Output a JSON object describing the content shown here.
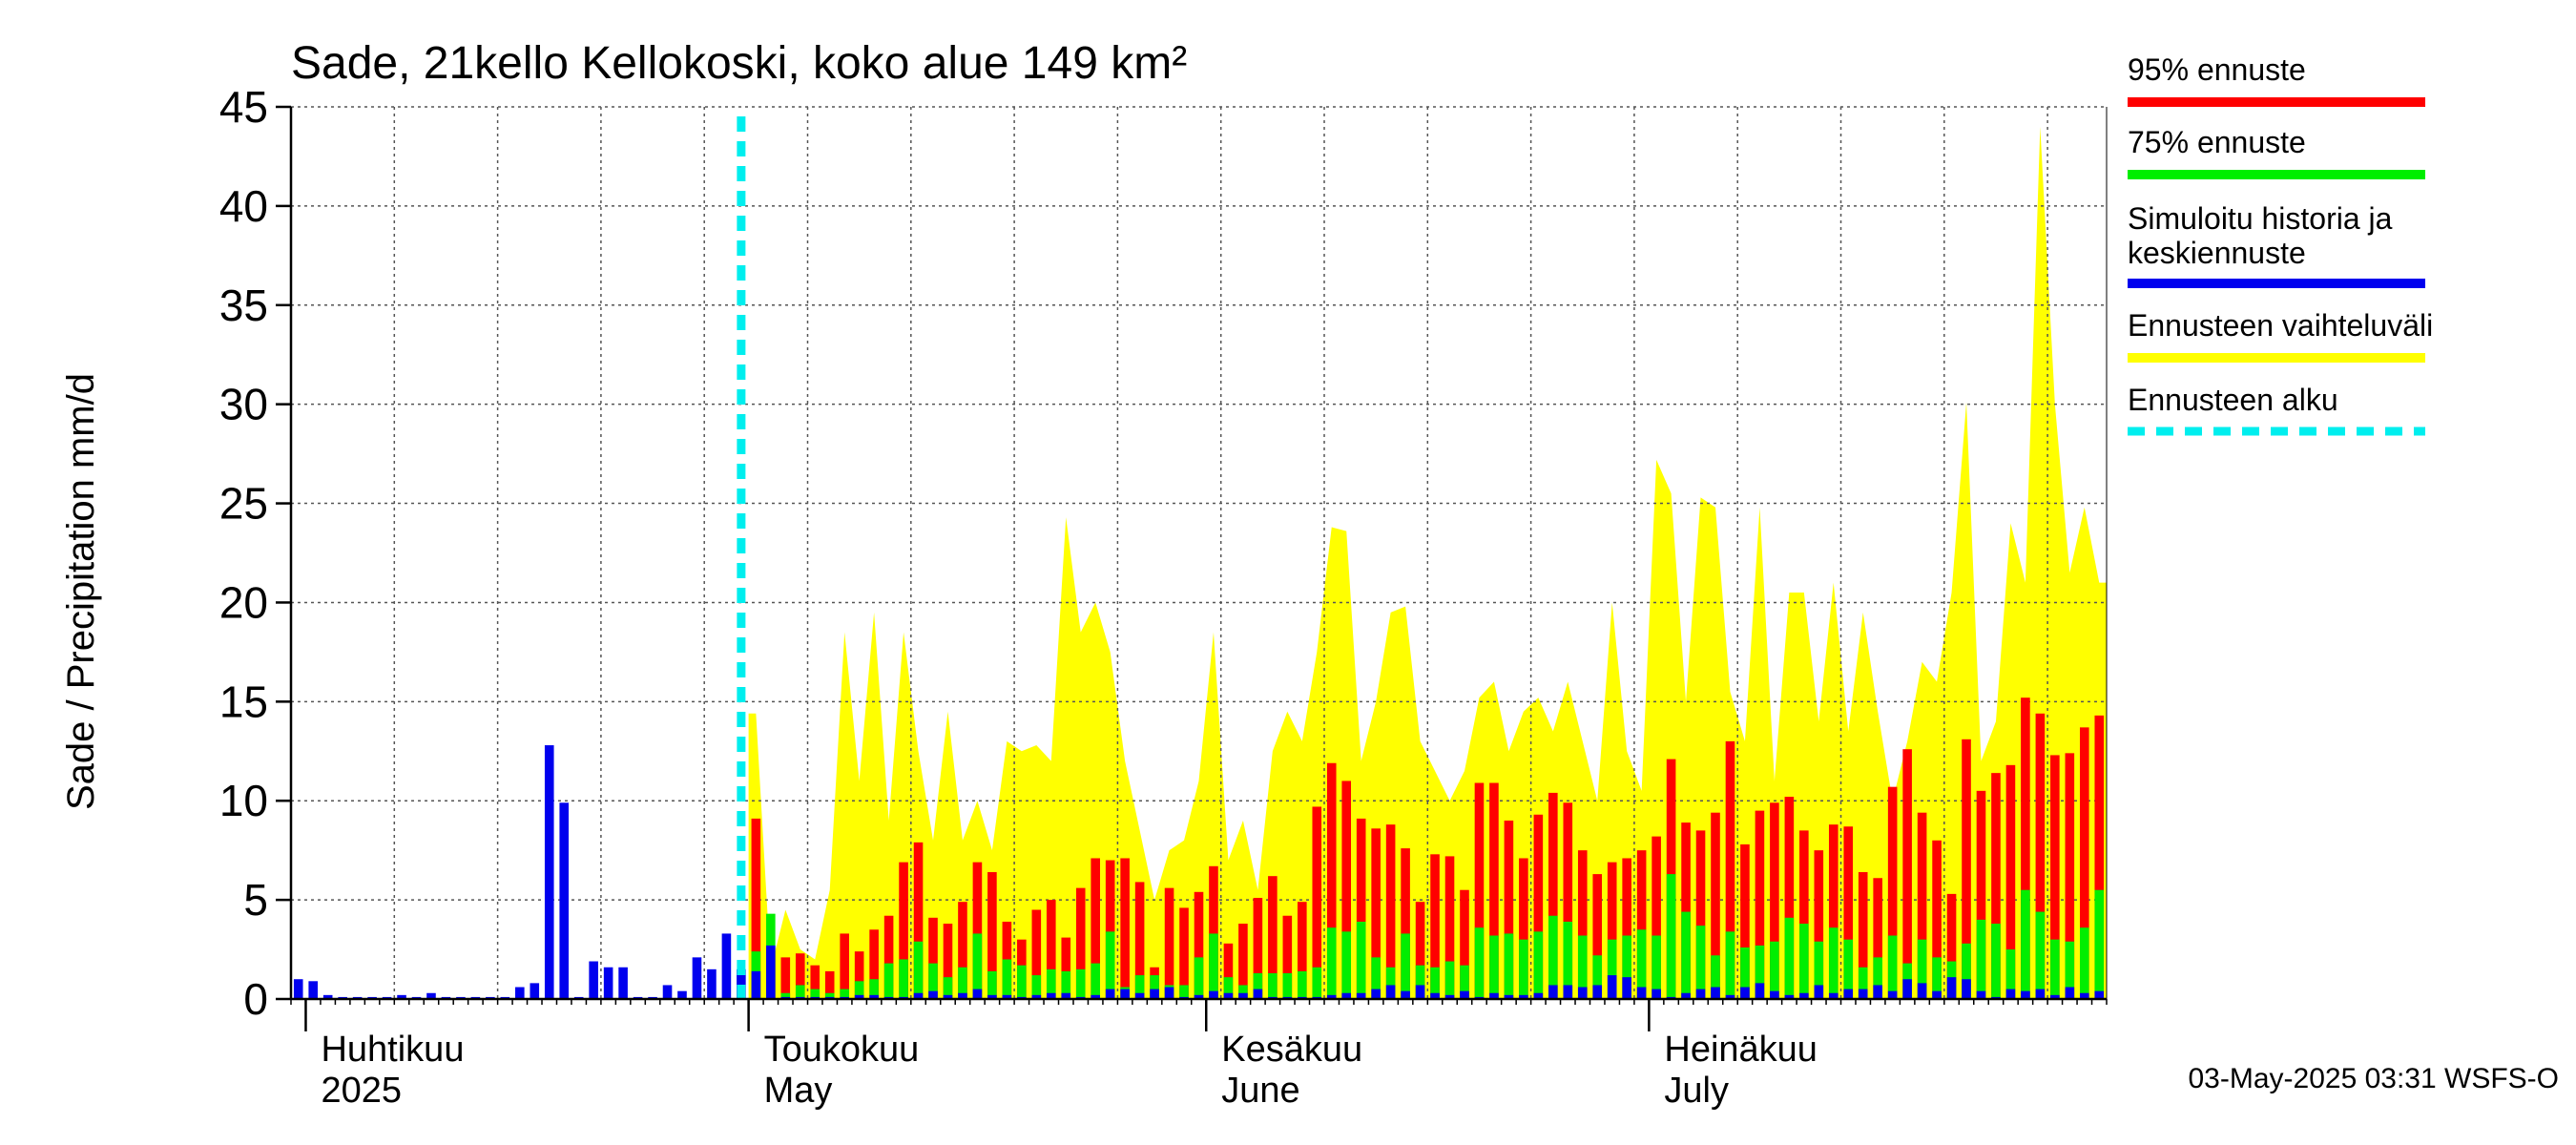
{
  "chart_data": {
    "type": "bar",
    "title": "Sade, 21kello Kellokoski, koko alue 149 km²",
    "ylabel": "Sade / Precipitation   mm/d",
    "ylim": [
      0,
      45
    ],
    "yticks": [
      0,
      5,
      10,
      15,
      20,
      25,
      30,
      35,
      40,
      45
    ],
    "x_start_date": "2025-03-31",
    "forecast_start_date": "2025-04-30",
    "month_labels": [
      {
        "fi": "Huhtikuu",
        "en": "2025",
        "date": "2025-04-01"
      },
      {
        "fi": "Toukokuu",
        "en": "May",
        "date": "2025-05-01"
      },
      {
        "fi": "Kesäkuu",
        "en": "June",
        "date": "2025-06-01"
      },
      {
        "fi": "Heinäkuu",
        "en": "July",
        "date": "2025-07-01"
      }
    ],
    "legend": [
      {
        "label": "95% ennuste",
        "color": "#ff0000",
        "style": "solid"
      },
      {
        "label": "75% ennuste",
        "color": "#00ee00",
        "style": "solid"
      },
      {
        "label": "Simuloitu historia ja keskiennuste",
        "color": "#0000ee",
        "style": "solid"
      },
      {
        "label": "Ennusteen vaihteluväli",
        "color": "#ffff00",
        "style": "solid"
      },
      {
        "label": "Ennusteen alku",
        "color": "#00eeee",
        "style": "dashed"
      }
    ],
    "timestamp": "03-May-2025 03:31 WSFS-O",
    "history_blue": [
      1.0,
      0.9,
      0.2,
      0.1,
      0.1,
      0.1,
      0.1,
      0.2,
      0.1,
      0.3,
      0.1,
      0.1,
      0.1,
      0.1,
      0.1,
      0.6,
      0.8,
      12.8,
      9.9,
      0.1,
      1.9,
      1.6,
      1.6,
      0.1,
      0.1,
      0.7,
      0.4,
      2.1,
      1.5,
      3.3,
      1.5
    ],
    "forecast": {
      "blue": [
        1.4,
        2.7,
        0.1,
        0.1,
        0.1,
        0.1,
        0.1,
        0.2,
        0.2,
        0.1,
        0.1,
        0.3,
        0.4,
        0.2,
        0.3,
        0.5,
        0.2,
        0.2,
        0.1,
        0.2,
        0.3,
        0.3,
        0.1,
        0.2,
        0.5,
        0.5,
        0.3,
        0.5,
        0.6,
        0.1,
        0.2,
        0.4,
        0.3,
        0.3,
        0.5,
        0.1,
        0.1,
        0.1,
        0.1,
        0.2,
        0.3,
        0.3,
        0.5,
        0.7,
        0.4,
        0.7,
        0.3,
        0.2,
        0.4,
        0.1,
        0.3,
        0.2,
        0.2,
        0.3,
        0.7,
        0.7,
        0.6,
        0.7,
        1.2,
        1.1,
        0.6,
        0.5,
        0.1,
        0.3,
        0.5,
        0.6,
        0.2,
        0.6,
        0.8,
        0.4,
        0.2,
        0.3,
        0.7,
        0.3,
        0.5,
        0.5,
        0.7,
        0.4,
        1.0,
        0.8,
        0.4,
        1.1,
        1.0,
        0.4,
        0.1,
        0.5,
        0.4,
        0.5,
        0.2,
        0.6,
        0.3,
        0.4
      ],
      "green": [
        2.4,
        4.3,
        0.3,
        0.7,
        0.5,
        0.3,
        0.5,
        0.9,
        1.0,
        1.8,
        2.0,
        2.9,
        1.8,
        1.1,
        1.6,
        3.3,
        1.4,
        2.0,
        1.7,
        1.2,
        1.5,
        1.4,
        1.5,
        1.8,
        3.4,
        0.6,
        1.2,
        1.2,
        0.7,
        0.7,
        2.1,
        3.3,
        1.1,
        0.7,
        1.3,
        1.3,
        1.3,
        1.4,
        1.6,
        3.6,
        3.4,
        3.9,
        2.1,
        1.6,
        3.3,
        1.7,
        1.6,
        1.9,
        1.7,
        3.6,
        3.2,
        3.3,
        3.0,
        3.4,
        4.2,
        3.9,
        3.2,
        2.2,
        3.0,
        3.2,
        3.5,
        3.2,
        6.3,
        4.4,
        3.7,
        2.2,
        3.4,
        2.6,
        2.7,
        2.9,
        4.1,
        3.8,
        2.9,
        3.6,
        3.0,
        1.6,
        2.1,
        3.2,
        1.8,
        3.0,
        2.1,
        1.9,
        2.8,
        4.0,
        3.8,
        2.5,
        5.5,
        4.4,
        3.0,
        2.9,
        3.6,
        5.5
      ],
      "red": [
        9.1,
        2.6,
        2.1,
        2.3,
        1.7,
        1.4,
        3.3,
        2.4,
        3.5,
        4.2,
        6.9,
        7.9,
        4.1,
        3.8,
        4.9,
        6.9,
        6.4,
        3.9,
        3.0,
        4.5,
        5.0,
        3.1,
        5.6,
        7.1,
        7.0,
        7.1,
        5.9,
        1.6,
        5.6,
        4.6,
        5.4,
        6.7,
        2.8,
        3.8,
        5.1,
        6.2,
        4.2,
        4.9,
        9.7,
        11.9,
        11.0,
        9.1,
        8.6,
        8.8,
        7.6,
        4.9,
        7.3,
        7.2,
        5.5,
        10.9,
        10.9,
        9.0,
        7.1,
        9.3,
        10.4,
        9.9,
        7.5,
        6.3,
        6.9,
        7.1,
        7.5,
        8.2,
        12.1,
        8.9,
        8.5,
        9.4,
        13.0,
        7.8,
        9.5,
        9.9,
        10.2,
        8.5,
        7.5,
        8.8,
        8.7,
        6.4,
        6.1,
        10.7,
        12.6,
        9.4,
        8.0,
        5.3,
        13.1,
        10.5,
        11.4,
        11.8,
        15.2,
        14.4,
        12.3,
        12.4,
        13.7,
        14.3
      ],
      "yellow": [
        14.4,
        1.5,
        4.5,
        2.5,
        2.0,
        5.5,
        18.5,
        11.0,
        19.5,
        9.0,
        18.5,
        12.5,
        8.0,
        14.5,
        8.0,
        10.0,
        7.5,
        13.0,
        12.5,
        12.8,
        12.0,
        24.3,
        18.5,
        20.0,
        17.5,
        12.0,
        8.5,
        5.0,
        7.5,
        8.0,
        11.0,
        18.5,
        7.0,
        9.0,
        5.5,
        12.5,
        14.5,
        13.0,
        17.5,
        23.8,
        23.6,
        12.0,
        15.0,
        19.5,
        19.8,
        13.0,
        11.5,
        10.0,
        11.5,
        15.2,
        16.0,
        12.5,
        14.5,
        15.2,
        13.5,
        16.0,
        13.0,
        10.0,
        20.0,
        12.5,
        10.5,
        27.2,
        25.5,
        15.0,
        25.3,
        24.8,
        15.5,
        13.0,
        24.8,
        11.0,
        20.5,
        20.5,
        14.0,
        21.0,
        13.5,
        19.5,
        14.5,
        10.0,
        13.0,
        17.0,
        16.0,
        20.5,
        30.1,
        12.0,
        14.0,
        24.0,
        21.0,
        44.0,
        30.0,
        21.5,
        24.8,
        21.0
      ]
    }
  }
}
